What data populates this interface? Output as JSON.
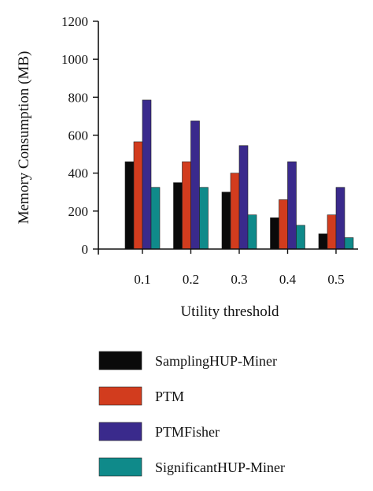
{
  "chart_data": {
    "type": "bar",
    "xlabel": "Utility threshold",
    "ylabel": "Memory Consumption (MB)",
    "categories": [
      "0.1",
      "0.2",
      "0.3",
      "0.4",
      "0.5"
    ],
    "ylim": [
      0,
      1200
    ],
    "yticks": [
      "0",
      "200",
      "400",
      "600",
      "800",
      "1000",
      "1200"
    ],
    "grid": false,
    "legend_position": "bottom",
    "series": [
      {
        "name": "SamplingHUP-Miner",
        "color": "#0a0a0a",
        "values": [
          460,
          350,
          300,
          165,
          80
        ]
      },
      {
        "name": "PTM",
        "color": "#d23c1e",
        "values": [
          565,
          460,
          400,
          260,
          180
        ]
      },
      {
        "name": "PTMFisher",
        "color": "#3a2a8c",
        "values": [
          785,
          675,
          545,
          460,
          325
        ]
      },
      {
        "name": "SignificantHUP-Miner",
        "color": "#0f8a8a",
        "values": [
          325,
          325,
          180,
          125,
          60
        ]
      }
    ]
  }
}
